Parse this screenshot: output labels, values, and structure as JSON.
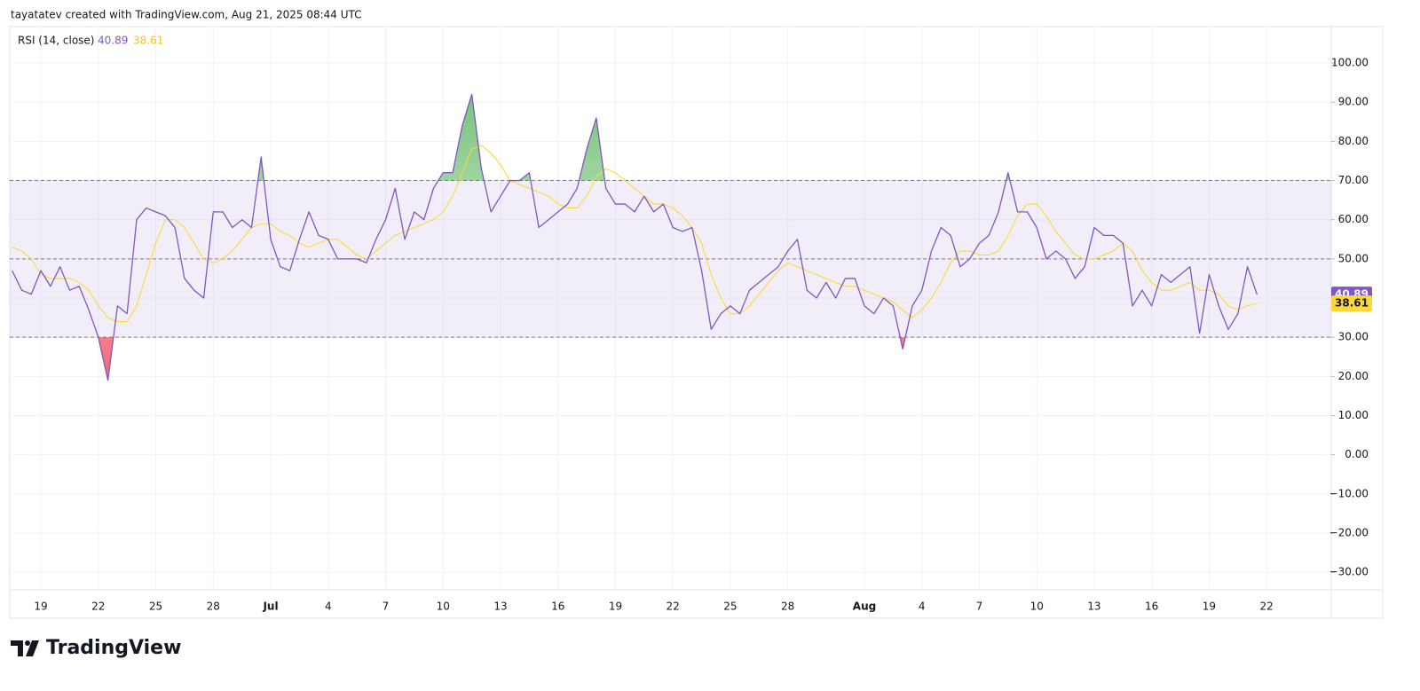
{
  "chart_data": {
    "type": "line",
    "attribution": "tayatatev created with TradingView.com, Aug 21, 2025 08:44 UTC",
    "brand": "TradingView",
    "categories": [
      null,
      null,
      null,
      "19",
      null,
      null,
      null,
      null,
      null,
      "22",
      null,
      null,
      null,
      null,
      null,
      "25",
      null,
      null,
      null,
      null,
      null,
      "28",
      null,
      null,
      null,
      null,
      null,
      "Jul",
      null,
      null,
      null,
      null,
      null,
      "4",
      null,
      null,
      null,
      null,
      null,
      "7",
      null,
      null,
      null,
      null,
      null,
      "10",
      null,
      null,
      null,
      null,
      null,
      "13",
      null,
      null,
      null,
      null,
      null,
      "16",
      null,
      null,
      null,
      null,
      null,
      "19",
      null,
      null,
      null,
      null,
      null,
      "22",
      null,
      null,
      null,
      null,
      null,
      "25",
      null,
      null,
      null,
      null,
      null,
      "28",
      null,
      null,
      null,
      null,
      null,
      null,
      null,
      "Aug",
      null,
      null,
      null,
      null,
      null,
      "4",
      null,
      null,
      null,
      null,
      null,
      "7",
      null,
      null,
      null,
      null,
      null,
      "10",
      null,
      null,
      null,
      null,
      null,
      "13",
      null,
      null,
      null,
      null,
      null,
      "16",
      null,
      null,
      null,
      null,
      null,
      "19",
      null,
      null,
      null,
      null,
      null,
      "22",
      null,
      null,
      null,
      null,
      null,
      null
    ],
    "series": [
      {
        "name": "RSI (14, close)",
        "color": "#7e57c2",
        "values": [
          47,
          42,
          41,
          47,
          43,
          48,
          42,
          43,
          37,
          30,
          19,
          38,
          36,
          60,
          63,
          62,
          61,
          58,
          45,
          42,
          40,
          62,
          62,
          58,
          60,
          58,
          76,
          55,
          48,
          47,
          55,
          62,
          56,
          55,
          50,
          50,
          50,
          49,
          55,
          60,
          68,
          55,
          62,
          60,
          68,
          72,
          72,
          84,
          92,
          73,
          62,
          66,
          70,
          70,
          72,
          58,
          60,
          62,
          64,
          68,
          78,
          86,
          68,
          64,
          64,
          62,
          66,
          62,
          64,
          58,
          57,
          58,
          47,
          32,
          36,
          38,
          36,
          42,
          44,
          46,
          48,
          52,
          55,
          42,
          40,
          44,
          40,
          45,
          45,
          38,
          36,
          40,
          38,
          27,
          38,
          42,
          52,
          58,
          56,
          48,
          50,
          54,
          56,
          62,
          72,
          62,
          62,
          58,
          50,
          52,
          50,
          45,
          48,
          58,
          56,
          56,
          54,
          38,
          42,
          38,
          46,
          44,
          46,
          48,
          31,
          46,
          38,
          32,
          36,
          48,
          40.89,
          null,
          null,
          null,
          null,
          null,
          null,
          null
        ]
      },
      {
        "color": "#fdd835",
        "values": [
          53,
          52,
          50,
          46,
          45,
          45,
          45,
          44,
          42,
          38,
          35,
          34,
          34,
          38,
          46,
          54,
          60,
          60,
          58,
          54,
          50,
          49,
          50,
          52,
          55,
          58,
          59,
          59,
          57,
          56,
          54,
          53,
          54,
          55,
          55,
          53,
          51,
          50,
          52,
          54,
          56,
          57,
          58,
          59,
          60,
          62,
          66,
          72,
          78,
          79,
          77,
          74,
          70,
          69,
          68,
          67,
          66,
          64,
          63,
          63,
          66,
          71,
          73,
          72,
          70,
          68,
          66,
          64,
          64,
          63,
          61,
          58,
          54,
          46,
          40,
          36,
          36,
          38,
          41,
          44,
          47,
          49,
          48,
          47,
          46,
          45,
          44,
          43,
          43,
          42,
          41,
          40,
          39,
          37,
          35,
          37,
          40,
          44,
          49,
          52,
          52,
          51,
          51,
          52,
          56,
          61,
          64,
          64,
          61,
          57,
          54,
          51,
          50,
          50,
          51,
          52,
          54,
          52,
          47,
          44,
          42,
          42,
          43,
          44,
          42,
          42,
          41,
          38,
          37,
          38,
          38.61,
          null,
          null,
          null,
          null,
          null,
          null,
          null
        ]
      }
    ],
    "bands": [
      70,
      50,
      30
    ],
    "band_fill": "rgba(126,87,194,0.1)",
    "overbought_fill": "#4caf50",
    "oversold_fill": "#f23645",
    "ylim": [
      -34.5,
      109.3
    ],
    "yticks": [
      {
        "value": 100,
        "label": "100.00"
      },
      {
        "value": 90,
        "label": "90.00"
      },
      {
        "value": 80,
        "label": "80.00"
      },
      {
        "value": 70,
        "label": "70.00"
      },
      {
        "value": 60,
        "label": "60.00"
      },
      {
        "value": 50,
        "label": "50.00"
      },
      {
        "value": 40,
        "label": "40.00"
      },
      {
        "value": 30,
        "label": "30.00"
      },
      {
        "value": 20,
        "label": "20.00"
      },
      {
        "value": 10,
        "label": "10.00"
      },
      {
        "value": 0,
        "label": "0.00"
      },
      {
        "value": -10,
        "label": "−10.00"
      },
      {
        "value": -20,
        "label": "−20.00"
      },
      {
        "value": -30,
        "label": "−30.00"
      }
    ],
    "grid": true
  }
}
